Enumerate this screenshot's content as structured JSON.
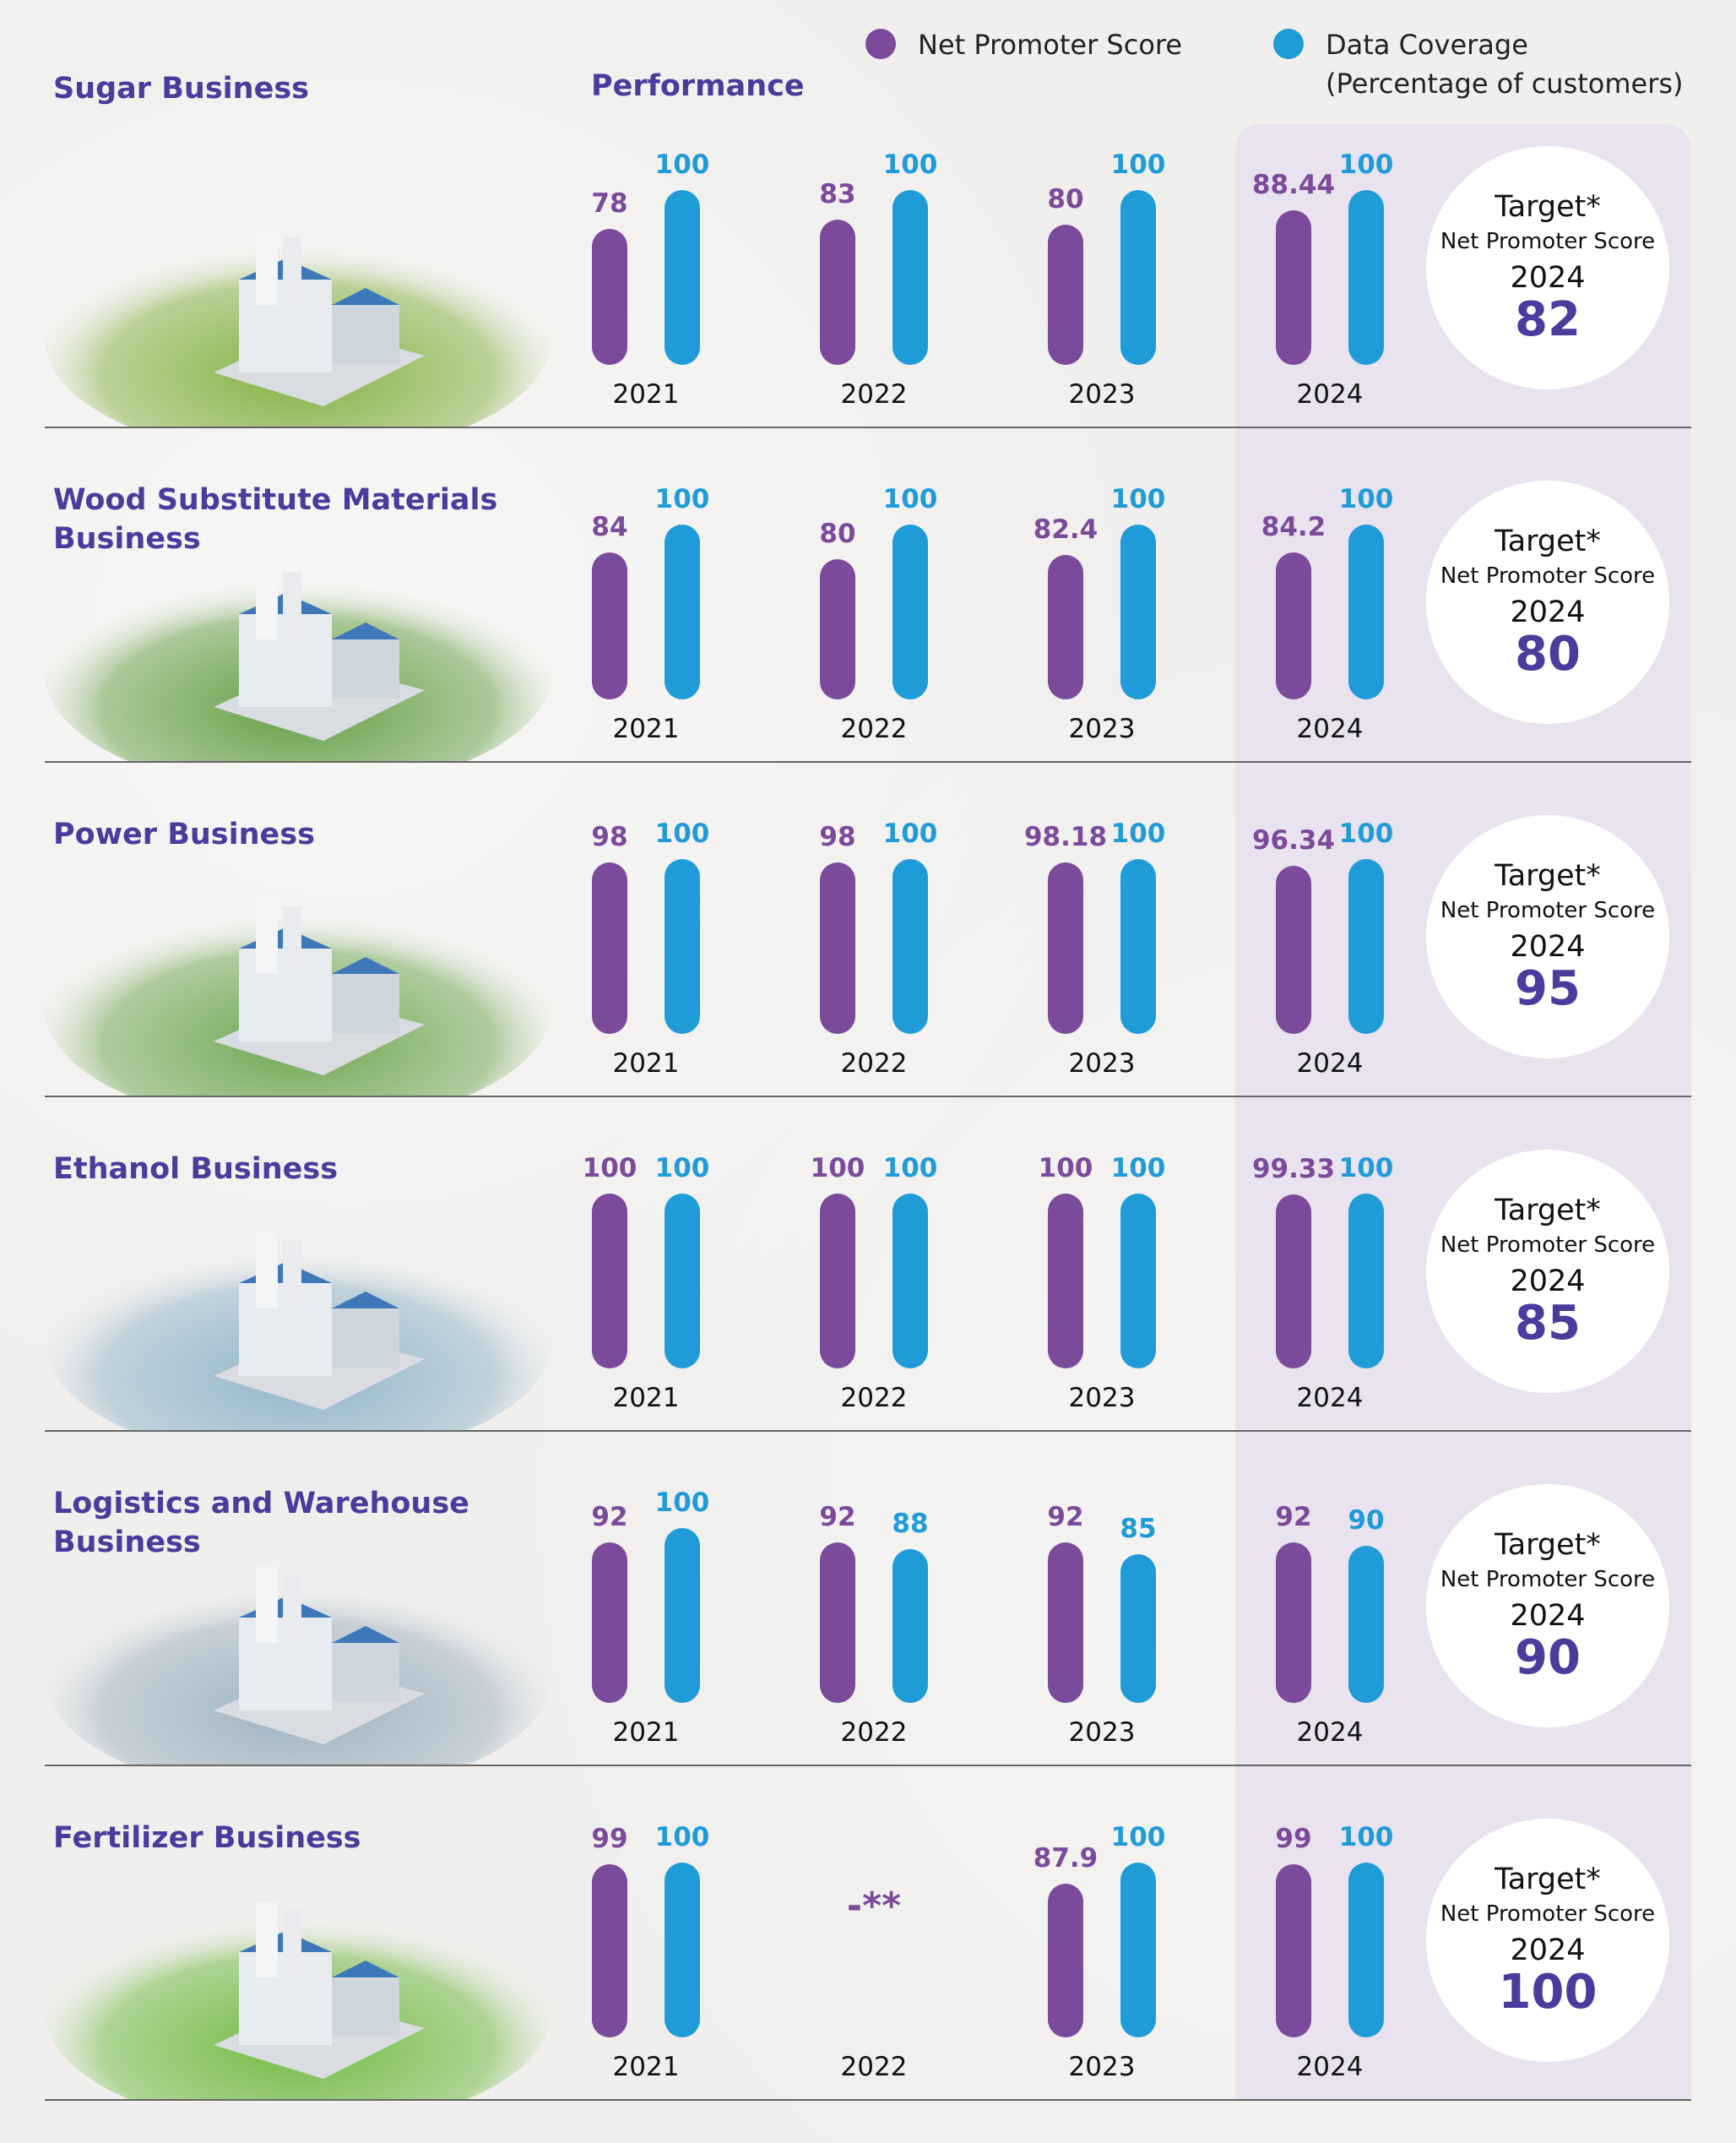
{
  "header": {
    "business_label": "Sugar Business",
    "performance_label": "Performance"
  },
  "legend": [
    {
      "label": "Net Promoter Score",
      "color": "#7b4a9b"
    },
    {
      "label": "Data Coverage",
      "sublabel": "(Percentage of customers)",
      "color": "#1f9cd8"
    }
  ],
  "target_labels": {
    "title": "Target*",
    "metric": "Net Promoter Score",
    "year": "2024"
  },
  "chart_data": {
    "type": "bar",
    "title": "Performance",
    "categories": [
      "2021",
      "2022",
      "2023",
      "2024"
    ],
    "ylim": [
      0,
      100
    ],
    "highlight_category": "2024",
    "series_names": [
      "Net Promoter Score",
      "Data Coverage"
    ],
    "businesses": [
      {
        "name": "Sugar Business",
        "nps": [
          "78",
          "83",
          "80",
          "88.44"
        ],
        "coverage": [
          "100",
          "100",
          "100",
          "100"
        ],
        "target": "82"
      },
      {
        "name": "Wood Substitute Materials Business",
        "nps": [
          "84",
          "80",
          "82.4",
          "84.2"
        ],
        "coverage": [
          "100",
          "100",
          "100",
          "100"
        ],
        "target": "80"
      },
      {
        "name": "Power Business",
        "nps": [
          "98",
          "98",
          "98.18",
          "96.34"
        ],
        "coverage": [
          "100",
          "100",
          "100",
          "100"
        ],
        "target": "95"
      },
      {
        "name": "Ethanol Business",
        "nps": [
          "100",
          "100",
          "100",
          "99.33"
        ],
        "coverage": [
          "100",
          "100",
          "100",
          "100"
        ],
        "target": "85"
      },
      {
        "name": "Logistics and Warehouse Business",
        "nps": [
          "92",
          "92",
          "92",
          "92"
        ],
        "coverage": [
          "100",
          "88",
          "85",
          "90"
        ],
        "target": "90"
      },
      {
        "name": "Fertilizer Business",
        "nps": [
          "99",
          "-**",
          "87.9",
          "99"
        ],
        "coverage": [
          "100",
          null,
          "100",
          "100"
        ],
        "target": "100"
      }
    ]
  }
}
